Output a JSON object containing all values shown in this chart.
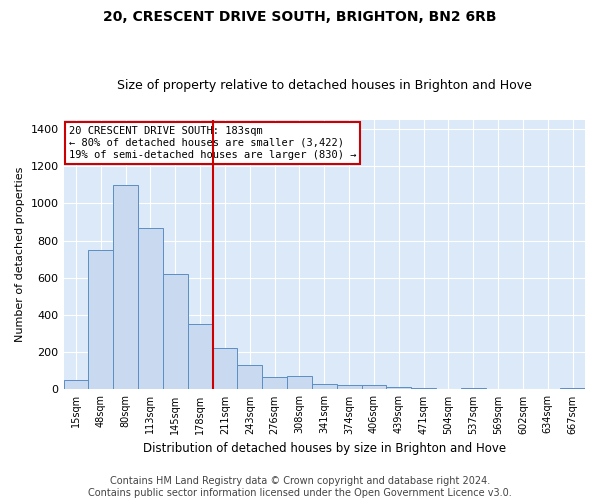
{
  "title": "20, CRESCENT DRIVE SOUTH, BRIGHTON, BN2 6RB",
  "subtitle": "Size of property relative to detached houses in Brighton and Hove",
  "xlabel": "Distribution of detached houses by size in Brighton and Hove",
  "ylabel": "Number of detached properties",
  "categories": [
    "15sqm",
    "48sqm",
    "80sqm",
    "113sqm",
    "145sqm",
    "178sqm",
    "211sqm",
    "243sqm",
    "276sqm",
    "308sqm",
    "341sqm",
    "374sqm",
    "406sqm",
    "439sqm",
    "471sqm",
    "504sqm",
    "537sqm",
    "569sqm",
    "602sqm",
    "634sqm",
    "667sqm"
  ],
  "values": [
    50,
    750,
    1100,
    870,
    620,
    350,
    225,
    130,
    65,
    70,
    28,
    25,
    22,
    15,
    10,
    0,
    10,
    0,
    0,
    0,
    10
  ],
  "bar_color": "#c9d9f0",
  "bar_edge_color": "#5b8ec4",
  "vline_color": "#cc0000",
  "vline_index": 5,
  "annotation_text": "20 CRESCENT DRIVE SOUTH: 183sqm\n← 80% of detached houses are smaller (3,422)\n19% of semi-detached houses are larger (830) →",
  "annotation_box_color": "#ffffff",
  "annotation_box_edge_color": "#cc0000",
  "ylim": [
    0,
    1450
  ],
  "yticks": [
    0,
    200,
    400,
    600,
    800,
    1000,
    1200,
    1400
  ],
  "footer_line1": "Contains HM Land Registry data © Crown copyright and database right 2024.",
  "footer_line2": "Contains public sector information licensed under the Open Government Licence v3.0.",
  "fig_background_color": "#ffffff",
  "plot_background_color": "#dce9f8",
  "title_fontsize": 10,
  "subtitle_fontsize": 9,
  "footer_fontsize": 7
}
